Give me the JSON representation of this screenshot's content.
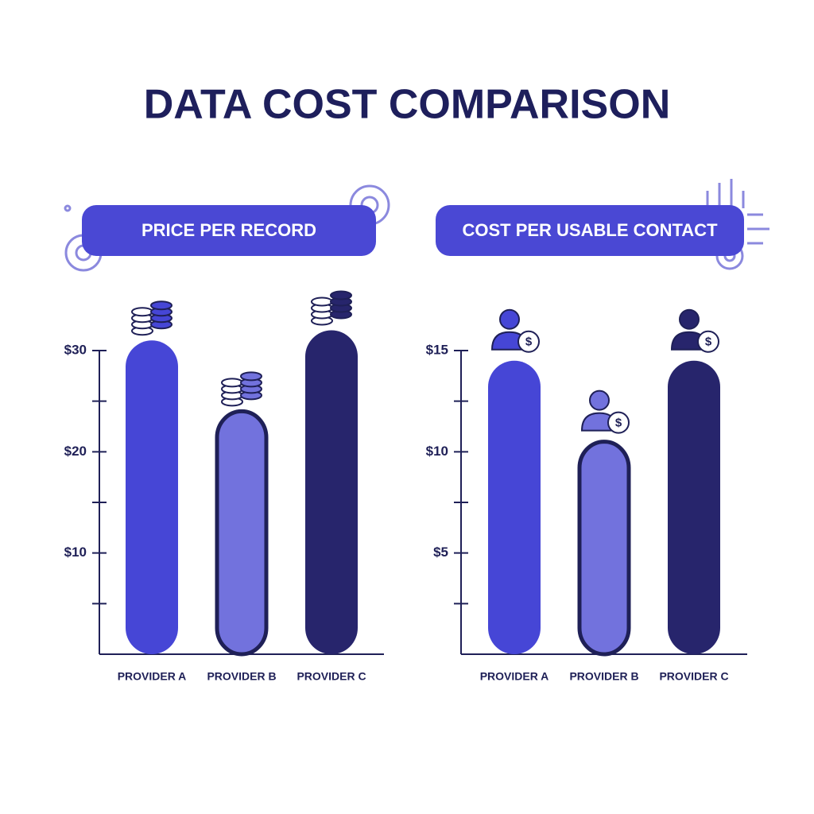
{
  "title": "DATA COST COMPARISON",
  "chart_data": [
    {
      "type": "bar",
      "title": "PRICE PER RECORD",
      "categories": [
        "PROVIDER A",
        "PROVIDER B",
        "PROVIDER C"
      ],
      "values": [
        31,
        24,
        32
      ],
      "colors": [
        "#4646d6",
        "#7272dd",
        "#27256c"
      ],
      "ylim": [
        0,
        30
      ],
      "yticks": [
        {
          "value": 10,
          "label": "$10"
        },
        {
          "value": 20,
          "label": "$20"
        },
        {
          "value": 30,
          "label": "$30"
        }
      ],
      "minor_yticks": [
        5,
        15,
        25
      ]
    },
    {
      "type": "bar",
      "title": "COST PER USABLE CONTACT",
      "categories": [
        "PROVIDER A",
        "PROVIDER B",
        "PROVIDER C"
      ],
      "values": [
        14.5,
        10.5,
        14.5
      ],
      "colors": [
        "#4646d6",
        "#7272dd",
        "#27256c"
      ],
      "ylim": [
        0,
        15
      ],
      "yticks": [
        {
          "value": 5,
          "label": "$5"
        },
        {
          "value": 10,
          "label": "$10"
        },
        {
          "value": 15,
          "label": "$15"
        }
      ],
      "minor_yticks": [
        2.5,
        7.5,
        12.5
      ]
    }
  ]
}
